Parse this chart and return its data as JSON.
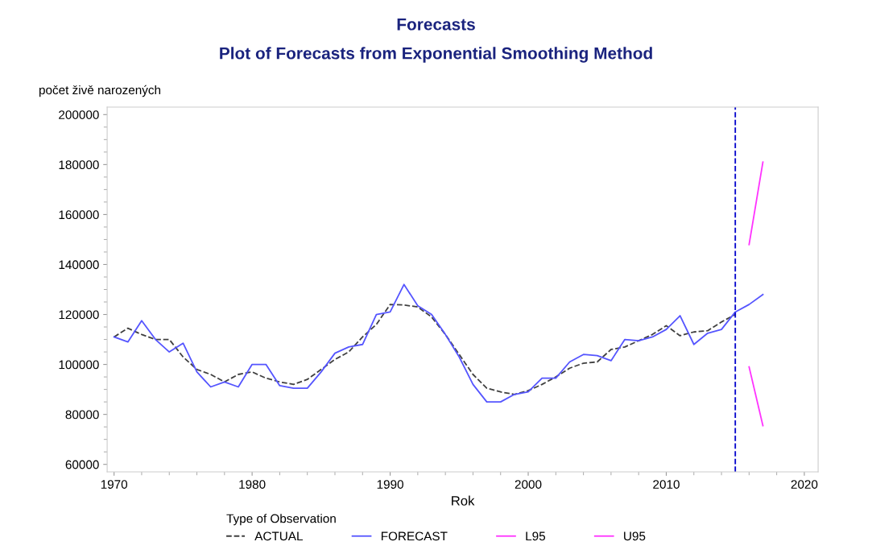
{
  "chart_data": {
    "type": "line",
    "title": "Forecasts",
    "subtitle": "Plot of Forecasts from Exponential Smoothing Method",
    "xlabel": "Rok",
    "ylabel": "počet živě narozených",
    "legend_title": "Type of Observation",
    "xlim": [
      1969.5,
      2021
    ],
    "xticks": [
      1970,
      1980,
      1990,
      2000,
      2010,
      2020
    ],
    "ylim": [
      57000,
      203000
    ],
    "yticks": [
      60000,
      80000,
      100000,
      120000,
      140000,
      160000,
      180000,
      200000
    ],
    "grid": false,
    "legend": "bottom",
    "marker": "none",
    "ref_lines": [
      {
        "axis": "x",
        "value": 2015,
        "color": "#0000cc",
        "line_style": "dashed"
      }
    ],
    "series": [
      {
        "name": "ACTUAL",
        "color": "#404040",
        "line_style": "dashed",
        "x": [
          1970,
          1971,
          1972,
          1973,
          1974,
          1975,
          1976,
          1977,
          1978,
          1979,
          1980,
          1981,
          1982,
          1983,
          1984,
          1985,
          1986,
          1987,
          1988,
          1989,
          1990,
          1991,
          1992,
          1993,
          1994,
          1995,
          1996,
          1997,
          1998,
          1999,
          2000,
          2001,
          2002,
          2003,
          2004,
          2005,
          2006,
          2007,
          2008,
          2009,
          2010,
          2011,
          2012,
          2013,
          2014,
          2015
        ],
        "values": [
          111000,
          114500,
          112000,
          110000,
          110000,
          103000,
          98000,
          96000,
          93000,
          96000,
          97000,
          94500,
          93000,
          92000,
          94000,
          98000,
          102000,
          105000,
          111000,
          116000,
          124000,
          123800,
          123000,
          119000,
          112000,
          104000,
          96000,
          90500,
          89000,
          88000,
          89500,
          92000,
          95000,
          98500,
          100500,
          101000,
          106000,
          107000,
          109500,
          112000,
          115500,
          111500,
          113000,
          113500,
          117000,
          120000
        ]
      },
      {
        "name": "FORECAST",
        "color": "#5555ff",
        "line_style": "solid",
        "x": [
          1970,
          1971,
          1972,
          1973,
          1974,
          1975,
          1976,
          1977,
          1978,
          1979,
          1980,
          1981,
          1982,
          1983,
          1984,
          1985,
          1986,
          1987,
          1988,
          1989,
          1990,
          1991,
          1992,
          1993,
          1994,
          1995,
          1996,
          1997,
          1998,
          1999,
          2000,
          2001,
          2002,
          2003,
          2004,
          2005,
          2006,
          2007,
          2008,
          2009,
          2010,
          2011,
          2012,
          2013,
          2014,
          2015,
          2016,
          2017
        ],
        "values": [
          111000,
          109000,
          117500,
          110000,
          105000,
          108500,
          97000,
          91000,
          93000,
          91000,
          100000,
          100000,
          91500,
          90500,
          90500,
          97000,
          104500,
          107000,
          108000,
          120000,
          121000,
          132000,
          123500,
          120000,
          112000,
          103000,
          92000,
          85000,
          85000,
          88000,
          89000,
          94500,
          94500,
          101000,
          104000,
          103500,
          101500,
          110000,
          109500,
          111000,
          114000,
          119500,
          108000,
          112500,
          114000,
          121000,
          124000,
          128000
        ]
      },
      {
        "name": "L95",
        "color": "#ff33ff",
        "line_style": "solid",
        "x": [
          2016,
          2017
        ],
        "values": [
          99000,
          75500
        ]
      },
      {
        "name": "U95",
        "color": "#ff33ff",
        "line_style": "solid",
        "x": [
          2016,
          2017
        ],
        "values": [
          148000,
          181000
        ]
      }
    ]
  }
}
